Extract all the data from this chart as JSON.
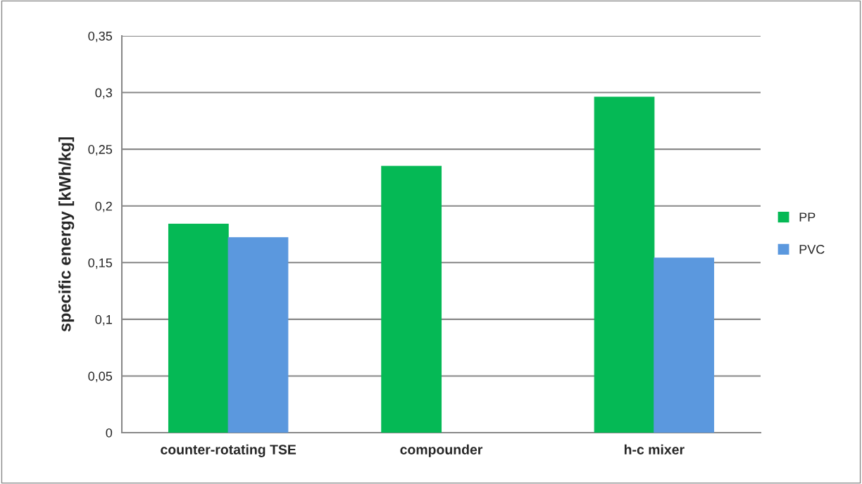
{
  "chart_data": {
    "type": "bar",
    "ylabel": "specific energy [kWh/kg]",
    "categories": [
      "counter-rotating TSE",
      "compounder",
      "h-c mixer"
    ],
    "series": [
      {
        "name": "PP",
        "color": "#05b955",
        "values": [
          0.184,
          0.235,
          0.296
        ]
      },
      {
        "name": "PVC",
        "color": "#5b98de",
        "values": [
          0.172,
          null,
          0.154
        ]
      }
    ],
    "ylim": [
      0,
      0.35
    ],
    "yticks": [
      {
        "value": 0,
        "label": "0"
      },
      {
        "value": 0.05,
        "label": "0,05"
      },
      {
        "value": 0.1,
        "label": "0,1"
      },
      {
        "value": 0.15,
        "label": "0,15"
      },
      {
        "value": 0.2,
        "label": "0,2"
      },
      {
        "value": 0.25,
        "label": "0,25"
      },
      {
        "value": 0.3,
        "label": "0,3"
      },
      {
        "value": 0.35,
        "label": "0,35"
      }
    ],
    "grid": "y",
    "legend": "right"
  }
}
